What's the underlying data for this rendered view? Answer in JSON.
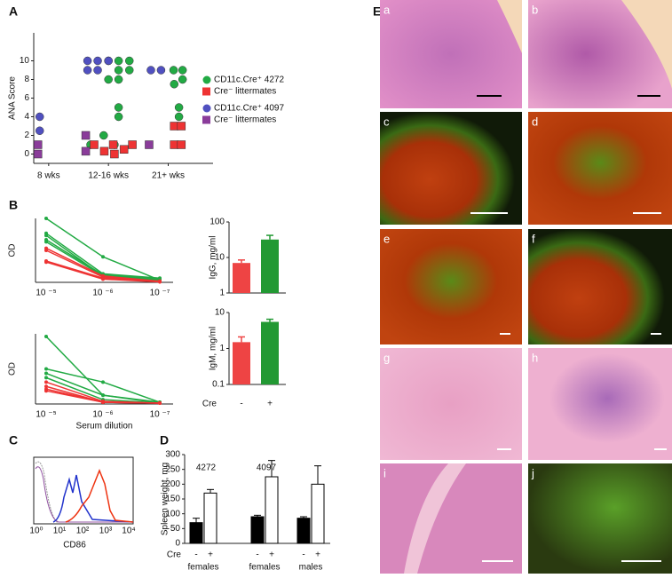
{
  "chart_data": [
    {
      "panel": "A",
      "type": "scatter",
      "ylabel": "ANA Score",
      "xlim": [
        0.75,
        3.75
      ],
      "ylim": [
        -1,
        13
      ],
      "yticks": [
        0,
        2,
        4,
        6,
        8,
        10
      ],
      "xticks": [
        {
          "value": 1,
          "label": "8 wks"
        },
        {
          "value": 2,
          "label": "12-16 wks"
        },
        {
          "value": 3,
          "label": "21+ wks"
        }
      ],
      "series": [
        {
          "name": "CD11c.Cre⁺ 4272",
          "color": "#22aa44",
          "marker": "circle",
          "x": [
            2.0,
            2.17,
            2.35,
            2.17,
            2.35,
            2.0,
            2.17,
            2.17,
            2.17,
            1.7,
            1.92,
            2.1,
            3.09,
            3.24,
            3.24,
            3.1,
            3.18,
            3.18
          ],
          "y": [
            10,
            10,
            10,
            9,
            9,
            8,
            8,
            5,
            4,
            1,
            2,
            1,
            9,
            9,
            8,
            7.5,
            5,
            4
          ]
        },
        {
          "name": "Cre⁻ littermates",
          "color": "#ee3333",
          "marker": "square",
          "x": [
            1.76,
            1.93,
            2.08,
            2.26,
            2.4,
            2.1,
            3.1,
            3.22,
            3.1,
            3.22
          ],
          "y": [
            1,
            0.3,
            1,
            0.5,
            1,
            0,
            3,
            3,
            1,
            1
          ]
        },
        {
          "name": "CD11c.Cre⁺ 4097",
          "color": "#5050c0",
          "marker": "circle",
          "x": [
            0.85,
            0.85,
            1.65,
            1.82,
            2.0,
            1.65,
            1.82,
            2.71,
            2.88
          ],
          "y": [
            4,
            2.5,
            10,
            10,
            10,
            9,
            9,
            9,
            9
          ]
        },
        {
          "name": "Cre⁻ littermates",
          "color": "#8a3c9a",
          "marker": "square",
          "x": [
            0.82,
            0.82,
            1.62,
            1.62,
            2.68
          ],
          "y": [
            1,
            0,
            2,
            0.3,
            1
          ]
        }
      ]
    },
    {
      "panel": "B",
      "type": "line",
      "ylabel": "OD",
      "ylim": [
        0,
        3
      ],
      "categories": [
        "10 ⁻⁵",
        "10 ⁻⁶",
        "10 ⁻⁷"
      ],
      "series": [
        {
          "color": "#22aa44",
          "values": [
            3.0,
            1.2,
            0.1
          ]
        },
        {
          "color": "#22aa44",
          "values": [
            2.3,
            0.4,
            0.2
          ]
        },
        {
          "color": "#22aa44",
          "values": [
            2.2,
            0.3,
            0.1
          ]
        },
        {
          "color": "#22aa44",
          "values": [
            2.0,
            0.35,
            0.15
          ]
        },
        {
          "color": "#22aa44",
          "values": [
            1.9,
            0.3,
            0.1
          ]
        },
        {
          "color": "#ee3333",
          "values": [
            1.6,
            0.3,
            0.05
          ]
        },
        {
          "color": "#ee3333",
          "values": [
            1.5,
            0.25,
            0.05
          ]
        },
        {
          "color": "#ee3333",
          "values": [
            1.0,
            0.2,
            0.03
          ]
        },
        {
          "color": "#ee3333",
          "values": [
            0.95,
            0.15,
            0.02
          ]
        }
      ]
    },
    {
      "type": "bar",
      "log": true,
      "ylabel": "IgG, mg/ml",
      "ylim": [
        1,
        100
      ],
      "yticks": [
        1,
        10,
        100
      ],
      "values": [
        7,
        32
      ],
      "errors": [
        1.5,
        10
      ],
      "colors": [
        "#ee4444",
        "#229933"
      ]
    },
    {
      "type": "line",
      "ylabel": "OD",
      "xlabel": "Serum dilution",
      "ylim": [
        0,
        0.8
      ],
      "categories": [
        "10 ⁻⁵",
        "10 ⁻⁶",
        "10 ⁻⁷"
      ],
      "series": [
        {
          "color": "#22aa44",
          "values": [
            0.77,
            0.1,
            0.02
          ]
        },
        {
          "color": "#22aa44",
          "values": [
            0.4,
            0.25,
            0.02
          ]
        },
        {
          "color": "#22aa44",
          "values": [
            0.35,
            0.1,
            0.01
          ]
        },
        {
          "color": "#22aa44",
          "values": [
            0.3,
            0.05,
            0.01
          ]
        },
        {
          "color": "#ee3333",
          "values": [
            0.25,
            0.03,
            0.01
          ]
        },
        {
          "color": "#ee3333",
          "values": [
            0.2,
            0.02,
            0.01
          ]
        },
        {
          "color": "#ee3333",
          "values": [
            0.17,
            0.02,
            0.01
          ]
        },
        {
          "color": "#ee3333",
          "values": [
            0.15,
            0.02,
            0.01
          ]
        }
      ]
    },
    {
      "type": "bar",
      "log": true,
      "ylabel": "IgM, mg/ml",
      "xlabel": "Cre",
      "categories": [
        "-",
        "+"
      ],
      "ylim": [
        0.1,
        10
      ],
      "yticks": [
        0.1,
        1,
        10
      ],
      "values": [
        1.5,
        5.5
      ],
      "errors": [
        0.6,
        1
      ],
      "colors": [
        "#ee4444",
        "#229933"
      ]
    },
    {
      "panel": "C",
      "type": "flow",
      "xlabel": "CD86",
      "xticks": [
        "10⁰",
        "10¹",
        "10²",
        "10³",
        "10⁴"
      ]
    },
    {
      "panel": "D",
      "type": "grouped-bar",
      "ylabel": "Spleen weight, mg",
      "xlabel": "Cre",
      "ylim": [
        0,
        300
      ],
      "yticks": [
        0,
        50,
        100,
        150,
        200,
        250,
        300
      ],
      "groups": [
        "females",
        "females",
        "males"
      ],
      "annotations": [
        "4272",
        "4097"
      ],
      "series": [
        {
          "name": "-",
          "color": "#000000",
          "values": [
            70,
            90,
            85
          ],
          "errors": [
            15,
            5,
            5
          ]
        },
        {
          "name": "+",
          "color": "#ffffff",
          "values": [
            170,
            225,
            200
          ],
          "errors": [
            12,
            55,
            62
          ]
        }
      ]
    }
  ],
  "panel_e": {
    "label": "E",
    "tiles": [
      "a",
      "b",
      "c",
      "d",
      "e",
      "f",
      "g",
      "h",
      "i",
      "j"
    ]
  }
}
